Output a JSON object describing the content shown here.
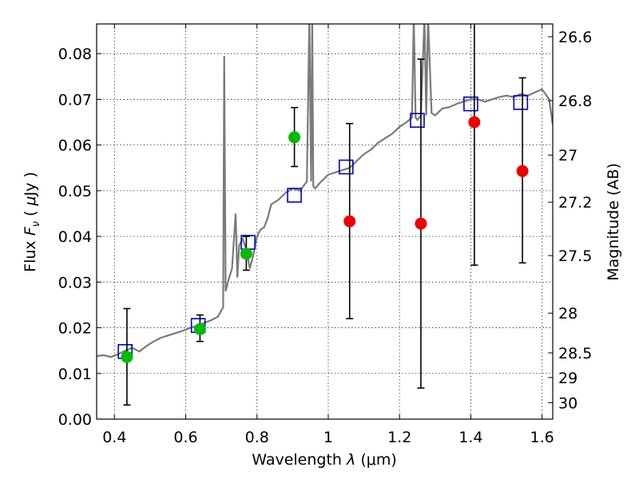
{
  "chart_data": {
    "type": "scatter",
    "title": "",
    "xlabel": "Wavelength",
    "xlabel_symbol": "λ",
    "xlabel_unit": "(μm)",
    "ylabel": "Flux",
    "ylabel_symbol": "F",
    "ylabel_subscript": "ν",
    "ylabel_unit_open": "(",
    "ylabel_unit_mu": "μ",
    "ylabel_unit_rest": "Jy )",
    "y2label": "Magnitude (AB)",
    "xlim": [
      0.35,
      1.63
    ],
    "ylim": [
      0.0,
      0.0865
    ],
    "grid": true,
    "x_ticks": [
      0.4,
      0.6,
      0.8,
      1.0,
      1.2,
      1.4,
      1.6
    ],
    "x_tick_labels": [
      "0.4",
      "0.6",
      "0.8",
      "1",
      "1.2",
      "1.4",
      "1.6"
    ],
    "y_ticks": [
      0.0,
      0.01,
      0.02,
      0.03,
      0.04,
      0.05,
      0.06,
      0.07,
      0.08
    ],
    "y_tick_labels": [
      "0.00",
      "0.01",
      "0.02",
      "0.03",
      "0.04",
      "0.05",
      "0.06",
      "0.07",
      "0.08"
    ],
    "y2_ticks": [
      {
        "label": "26.6",
        "flux": 0.0837
      },
      {
        "label": "26.8",
        "flux": 0.0697
      },
      {
        "label": "27",
        "flux": 0.0578
      },
      {
        "label": "27.2",
        "flux": 0.0475
      },
      {
        "label": "27.5",
        "flux": 0.0358
      },
      {
        "label": "28",
        "flux": 0.0232
      },
      {
        "label": "28.5",
        "flux": 0.0145
      },
      {
        "label": "29",
        "flux": 0.0091
      },
      {
        "label": "30",
        "flux": 0.0036
      }
    ],
    "series": [
      {
        "marker": "line",
        "color": "#7a7a7a",
        "x": [
          0.35,
          0.37,
          0.39,
          0.41,
          0.43,
          0.45,
          0.47,
          0.49,
          0.51,
          0.53,
          0.55,
          0.57,
          0.59,
          0.61,
          0.63,
          0.65,
          0.67,
          0.69,
          0.705,
          0.708,
          0.712,
          0.72,
          0.73,
          0.74,
          0.745,
          0.75,
          0.76,
          0.77,
          0.78,
          0.79,
          0.8,
          0.81,
          0.82,
          0.83,
          0.84,
          0.86,
          0.88,
          0.9,
          0.92,
          0.94,
          0.947,
          0.952,
          0.955,
          0.958,
          0.963,
          0.98,
          1.0,
          1.02,
          1.04,
          1.06,
          1.08,
          1.1,
          1.12,
          1.14,
          1.16,
          1.18,
          1.2,
          1.22,
          1.235,
          1.24,
          1.245,
          1.25,
          1.26,
          1.27,
          1.275,
          1.28,
          1.29,
          1.3,
          1.32,
          1.34,
          1.36,
          1.38,
          1.4,
          1.42,
          1.44,
          1.46,
          1.48,
          1.5,
          1.52,
          1.54,
          1.56,
          1.58,
          1.6,
          1.62,
          1.63
        ],
        "y": [
          0.0138,
          0.014,
          0.0136,
          0.0142,
          0.015,
          0.0156,
          0.0148,
          0.016,
          0.017,
          0.0178,
          0.0183,
          0.0188,
          0.0193,
          0.0199,
          0.0204,
          0.021,
          0.0216,
          0.0224,
          0.0245,
          0.0795,
          0.028,
          0.0305,
          0.033,
          0.045,
          0.031,
          0.038,
          0.0395,
          0.037,
          0.033,
          0.036,
          0.04,
          0.0415,
          0.042,
          0.044,
          0.047,
          0.048,
          0.0495,
          0.0505,
          0.05,
          0.052,
          0.088,
          0.052,
          0.088,
          0.051,
          0.0505,
          0.052,
          0.0535,
          0.054,
          0.0545,
          0.055,
          0.0565,
          0.058,
          0.059,
          0.0605,
          0.0615,
          0.0625,
          0.064,
          0.065,
          0.066,
          0.088,
          0.066,
          0.0655,
          0.0665,
          0.088,
          0.0665,
          0.088,
          0.067,
          0.0665,
          0.068,
          0.0683,
          0.069,
          0.0695,
          0.07,
          0.07,
          0.0695,
          0.07,
          0.0705,
          0.0708,
          0.0705,
          0.0712,
          0.0708,
          0.0715,
          0.0722,
          0.07,
          0.0645
        ]
      },
      {
        "marker": "open-square",
        "color": "#0000cc",
        "x": [
          0.43,
          0.635,
          0.775,
          0.905,
          1.05,
          1.25,
          1.4,
          1.54
        ],
        "y": [
          0.0148,
          0.0205,
          0.0387,
          0.049,
          0.0552,
          0.0654,
          0.069,
          0.0693
        ]
      },
      {
        "marker": "filled-circle",
        "color": "#00bb00",
        "x": [
          0.435,
          0.64,
          0.77,
          0.905
        ],
        "y": [
          0.0136,
          0.0197,
          0.0362,
          0.0617
        ],
        "yerr_low": [
          0.0031,
          0.017,
          0.0326,
          0.0553
        ],
        "yerr_high": [
          0.0242,
          0.0228,
          0.04,
          0.0682
        ]
      },
      {
        "marker": "filled-circle",
        "color": "#ee0000",
        "x": [
          1.06,
          1.26,
          1.41,
          1.545
        ],
        "y": [
          0.0433,
          0.0428,
          0.065,
          0.0543
        ],
        "yerr_low": [
          0.022,
          0.0068,
          0.0337,
          0.0342
        ],
        "yerr_high": [
          0.0647,
          0.0788,
          0.088,
          0.0747
        ]
      }
    ]
  }
}
